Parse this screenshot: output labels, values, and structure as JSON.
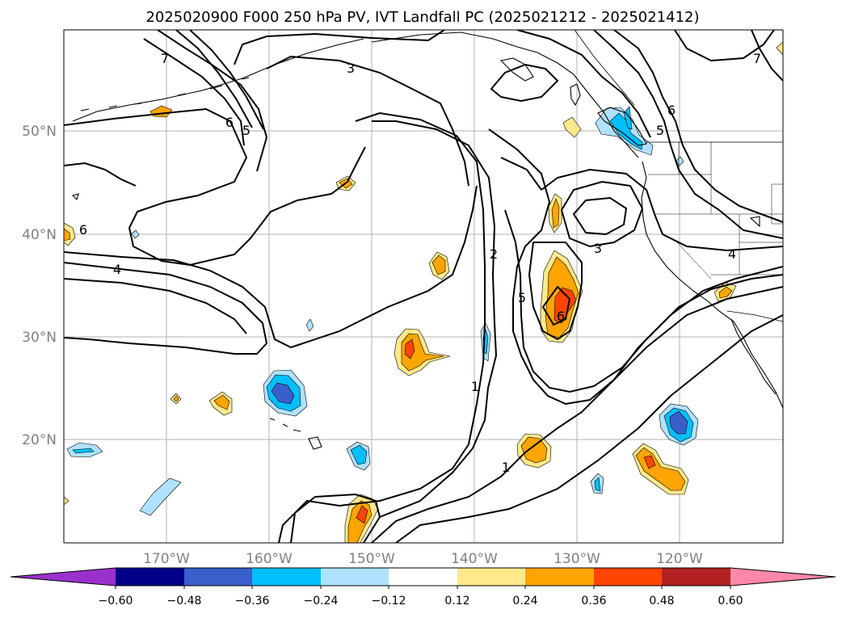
{
  "title": "2025020900 F000 250 hPa PV, IVT Landfall PC (2025021212 - 2025021412)",
  "lat_labels": [
    "50°N",
    "40°N",
    "30°N",
    "20°N"
  ],
  "lon_labels": [
    "170°W",
    "160°W",
    "150°W",
    "140°W",
    "130°W",
    "120°W"
  ],
  "colorbar": {
    "tick_labels": [
      "−0.60",
      "−0.48",
      "−0.36",
      "−0.24",
      "−0.12",
      "0.12",
      "0.24",
      "0.36",
      "0.48",
      "0.60"
    ],
    "colors": [
      "#9932cc",
      "#00008b",
      "#3a5fcd",
      "#00bfff",
      "#b0e2ff",
      "#ffffff",
      "#ffe98a",
      "#ffa500",
      "#ff4500",
      "#b22222",
      "#ff88aa"
    ]
  },
  "contour_labels": [
    "1",
    "1",
    "2",
    "3",
    "3",
    "4",
    "4",
    "5",
    "5",
    "5",
    "6",
    "6",
    "6",
    "6",
    "7",
    "7"
  ]
}
